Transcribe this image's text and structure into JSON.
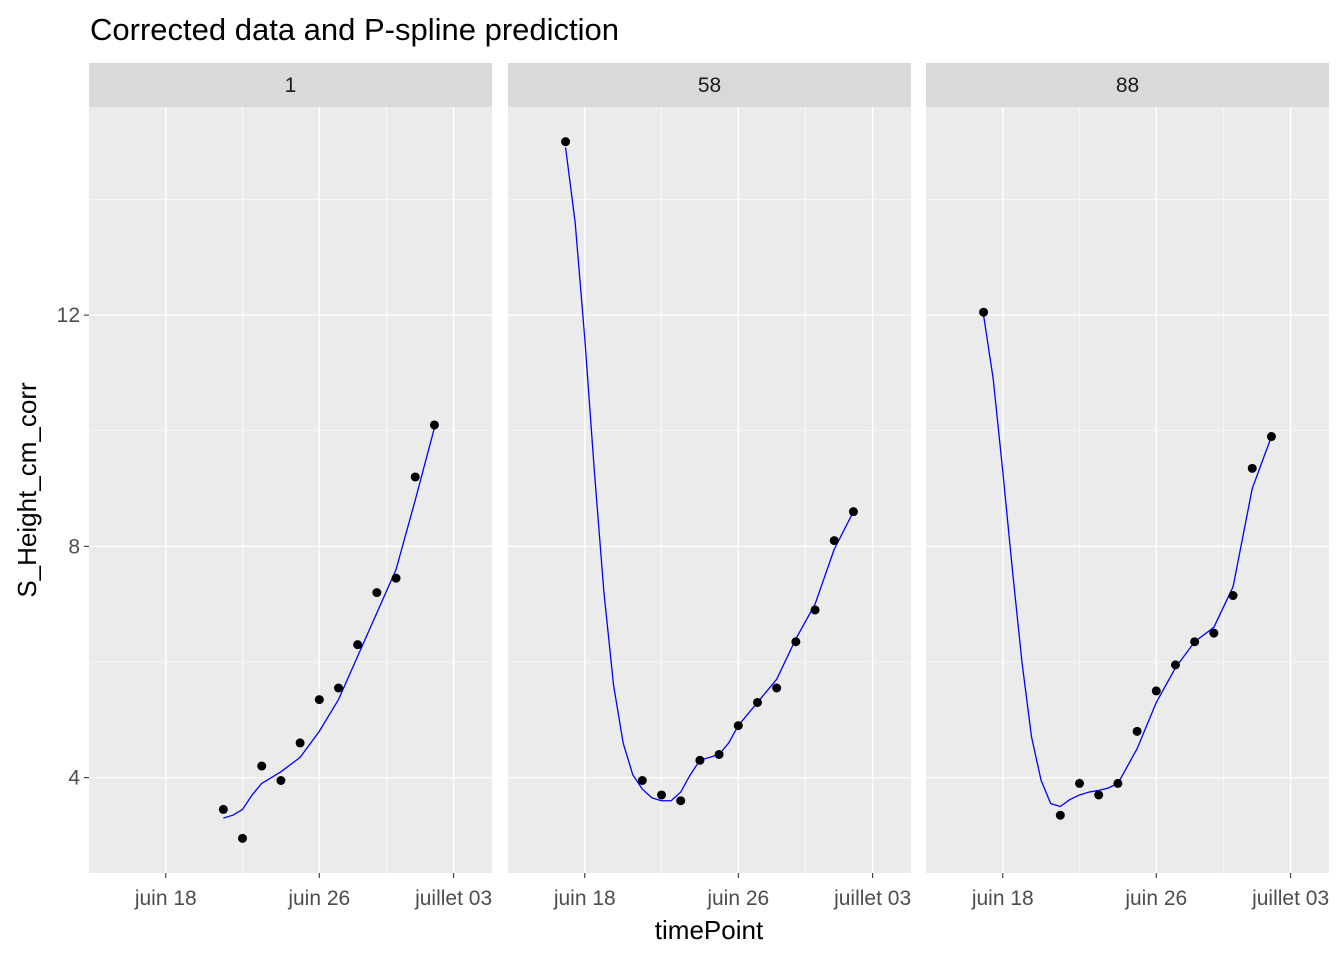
{
  "chart_data": {
    "type": "line",
    "title": "Corrected data and P-spline prediction",
    "xlabel": "timePoint",
    "ylabel": "S_Height_cm_corr",
    "x_type": "date",
    "x_ticks": [
      "2019-06-18",
      "2019-06-26",
      "2019-07-03"
    ],
    "x_tick_labels": [
      "juin 18",
      "juin 26",
      "juillet 03"
    ],
    "xlim": [
      "2019-06-14",
      "2019-07-05"
    ],
    "y_ticks": [
      4,
      8,
      12
    ],
    "ylim": [
      2.35,
      15.6
    ],
    "grid": true,
    "colors": {
      "panel_bg": "#ebebeb",
      "strip_bg": "#d9d9d9",
      "grid_major": "#ffffff",
      "points": "#000000",
      "spline": "#0000ff"
    },
    "panels": [
      {
        "label": "1",
        "points": [
          {
            "x": "2019-06-21",
            "y": 3.45
          },
          {
            "x": "2019-06-22",
            "y": 2.95
          },
          {
            "x": "2019-06-23",
            "y": 4.2
          },
          {
            "x": "2019-06-24",
            "y": 3.95
          },
          {
            "x": "2019-06-25",
            "y": 4.6
          },
          {
            "x": "2019-06-26",
            "y": 5.35
          },
          {
            "x": "2019-06-27",
            "y": 5.55
          },
          {
            "x": "2019-06-28",
            "y": 6.3
          },
          {
            "x": "2019-06-29",
            "y": 7.2
          },
          {
            "x": "2019-06-30",
            "y": 7.45
          },
          {
            "x": "2019-07-01",
            "y": 9.2
          },
          {
            "x": "2019-07-02",
            "y": 10.1
          }
        ],
        "spline": [
          {
            "x": "2019-06-21",
            "y": 3.3
          },
          {
            "x": "2019-06-21.5",
            "y": 3.35
          },
          {
            "x": "2019-06-22",
            "y": 3.45
          },
          {
            "x": "2019-06-22.5",
            "y": 3.7
          },
          {
            "x": "2019-06-23",
            "y": 3.9
          },
          {
            "x": "2019-06-24",
            "y": 4.1
          },
          {
            "x": "2019-06-25",
            "y": 4.35
          },
          {
            "x": "2019-06-26",
            "y": 4.8
          },
          {
            "x": "2019-06-27",
            "y": 5.35
          },
          {
            "x": "2019-06-28",
            "y": 6.1
          },
          {
            "x": "2019-06-29",
            "y": 6.85
          },
          {
            "x": "2019-06-30",
            "y": 7.6
          },
          {
            "x": "2019-07-01",
            "y": 8.8
          },
          {
            "x": "2019-07-02",
            "y": 10.05
          }
        ]
      },
      {
        "label": "58",
        "points": [
          {
            "x": "2019-06-17",
            "y": 15.0
          },
          {
            "x": "2019-06-21",
            "y": 3.95
          },
          {
            "x": "2019-06-22",
            "y": 3.7
          },
          {
            "x": "2019-06-23",
            "y": 3.6
          },
          {
            "x": "2019-06-24",
            "y": 4.3
          },
          {
            "x": "2019-06-25",
            "y": 4.4
          },
          {
            "x": "2019-06-26",
            "y": 4.9
          },
          {
            "x": "2019-06-27",
            "y": 5.3
          },
          {
            "x": "2019-06-28",
            "y": 5.55
          },
          {
            "x": "2019-06-29",
            "y": 6.35
          },
          {
            "x": "2019-06-30",
            "y": 6.9
          },
          {
            "x": "2019-07-01",
            "y": 8.1
          },
          {
            "x": "2019-07-02",
            "y": 8.6
          }
        ],
        "spline": [
          {
            "x": "2019-06-17",
            "y": 14.9
          },
          {
            "x": "2019-06-17.5",
            "y": 13.6
          },
          {
            "x": "2019-06-18",
            "y": 11.6
          },
          {
            "x": "2019-06-18.5",
            "y": 9.3
          },
          {
            "x": "2019-06-19",
            "y": 7.2
          },
          {
            "x": "2019-06-19.5",
            "y": 5.6
          },
          {
            "x": "2019-06-20",
            "y": 4.6
          },
          {
            "x": "2019-06-20.5",
            "y": 4.05
          },
          {
            "x": "2019-06-21",
            "y": 3.8
          },
          {
            "x": "2019-06-21.5",
            "y": 3.65
          },
          {
            "x": "2019-06-22",
            "y": 3.6
          },
          {
            "x": "2019-06-22.5",
            "y": 3.6
          },
          {
            "x": "2019-06-23",
            "y": 3.75
          },
          {
            "x": "2019-06-23.5",
            "y": 4.05
          },
          {
            "x": "2019-06-24",
            "y": 4.3
          },
          {
            "x": "2019-06-24.5",
            "y": 4.35
          },
          {
            "x": "2019-06-25",
            "y": 4.4
          },
          {
            "x": "2019-06-25.5",
            "y": 4.6
          },
          {
            "x": "2019-06-26",
            "y": 4.9
          },
          {
            "x": "2019-06-27",
            "y": 5.3
          },
          {
            "x": "2019-06-28",
            "y": 5.7
          },
          {
            "x": "2019-06-29",
            "y": 6.4
          },
          {
            "x": "2019-06-30",
            "y": 7.0
          },
          {
            "x": "2019-07-01",
            "y": 7.95
          },
          {
            "x": "2019-07-02",
            "y": 8.6
          }
        ]
      },
      {
        "label": "88",
        "points": [
          {
            "x": "2019-06-17",
            "y": 12.05
          },
          {
            "x": "2019-06-21",
            "y": 3.35
          },
          {
            "x": "2019-06-22",
            "y": 3.9
          },
          {
            "x": "2019-06-23",
            "y": 3.7
          },
          {
            "x": "2019-06-24",
            "y": 3.9
          },
          {
            "x": "2019-06-25",
            "y": 4.8
          },
          {
            "x": "2019-06-26",
            "y": 5.5
          },
          {
            "x": "2019-06-27",
            "y": 5.95
          },
          {
            "x": "2019-06-28",
            "y": 6.35
          },
          {
            "x": "2019-06-29",
            "y": 6.5
          },
          {
            "x": "2019-06-30",
            "y": 7.15
          },
          {
            "x": "2019-07-01",
            "y": 9.35
          },
          {
            "x": "2019-07-02",
            "y": 9.9
          }
        ],
        "spline": [
          {
            "x": "2019-06-17",
            "y": 12.0
          },
          {
            "x": "2019-06-17.5",
            "y": 10.9
          },
          {
            "x": "2019-06-18",
            "y": 9.3
          },
          {
            "x": "2019-06-18.5",
            "y": 7.6
          },
          {
            "x": "2019-06-19",
            "y": 6.0
          },
          {
            "x": "2019-06-19.5",
            "y": 4.7
          },
          {
            "x": "2019-06-20",
            "y": 3.95
          },
          {
            "x": "2019-06-20.5",
            "y": 3.55
          },
          {
            "x": "2019-06-21",
            "y": 3.5
          },
          {
            "x": "2019-06-21.5",
            "y": 3.62
          },
          {
            "x": "2019-06-22",
            "y": 3.7
          },
          {
            "x": "2019-06-22.5",
            "y": 3.75
          },
          {
            "x": "2019-06-23",
            "y": 3.78
          },
          {
            "x": "2019-06-23.5",
            "y": 3.82
          },
          {
            "x": "2019-06-24",
            "y": 3.9
          },
          {
            "x": "2019-06-25",
            "y": 4.5
          },
          {
            "x": "2019-06-26",
            "y": 5.3
          },
          {
            "x": "2019-06-27",
            "y": 5.9
          },
          {
            "x": "2019-06-28",
            "y": 6.35
          },
          {
            "x": "2019-06-29",
            "y": 6.6
          },
          {
            "x": "2019-06-30",
            "y": 7.3
          },
          {
            "x": "2019-07-01",
            "y": 9.0
          },
          {
            "x": "2019-07-02",
            "y": 9.9
          }
        ]
      }
    ]
  }
}
